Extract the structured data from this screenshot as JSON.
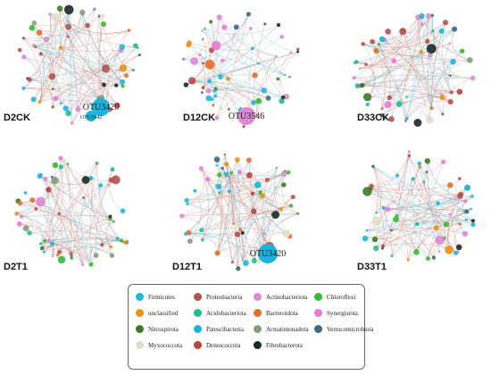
{
  "panels": [
    {
      "label": "D2CK",
      "edge_count": 150,
      "nodes": [
        {
          "id": "OTU3420",
          "phylum": "Patescibacteria",
          "big": true
        },
        {
          "id": "OTU3442",
          "phylum": "Patescibacteria",
          "big": true
        }
      ]
    },
    {
      "label": "D12CK",
      "edge_count": 90,
      "nodes": [
        {
          "id": "OTU3546",
          "phylum": "Actinobacteriota",
          "big": true
        }
      ]
    },
    {
      "label": "D33CK",
      "edge_count": 160,
      "nodes": []
    },
    {
      "label": "D2T1",
      "edge_count": 130,
      "nodes": []
    },
    {
      "label": "D12T1",
      "edge_count": 170,
      "nodes": [
        {
          "id": "OTU3420",
          "phylum": "Patescibacteria",
          "big": true
        }
      ]
    },
    {
      "label": "D33T1",
      "edge_count": 140,
      "nodes": []
    }
  ],
  "legend": [
    {
      "label": "Firmicutes",
      "color": "#1fb8d6"
    },
    {
      "label": "Proteobacteria",
      "color": "#b5534a"
    },
    {
      "label": "Actinobacteriota",
      "color": "#d98ad3"
    },
    {
      "label": "Chloroflexi",
      "color": "#3ab832"
    },
    {
      "label": "unclassified",
      "color": "#e8921a"
    },
    {
      "label": "Acidobacteriota",
      "color": "#1dbf8f"
    },
    {
      "label": "Bacteroidota",
      "color": "#e0702a"
    },
    {
      "label": "Synergistota",
      "color": "#e878d8"
    },
    {
      "label": "Nitrospirota",
      "color": "#3e7a2a"
    },
    {
      "label": "Patescibacteria",
      "color": "#18b4dc"
    },
    {
      "label": "Armatimonadota",
      "color": "#8a9a7a"
    },
    {
      "label": "Verrucomicrobiota",
      "color": "#3a6a80"
    },
    {
      "label": "Myxococcota",
      "color": "#dde0c8"
    },
    {
      "label": "Deinococcota",
      "color": "#c04040"
    },
    {
      "label": "Fibrobacterota",
      "color": "#1a2a22"
    }
  ],
  "edge_colors": {
    "positive": "#d98a80",
    "negative": "#7cc8d8"
  }
}
